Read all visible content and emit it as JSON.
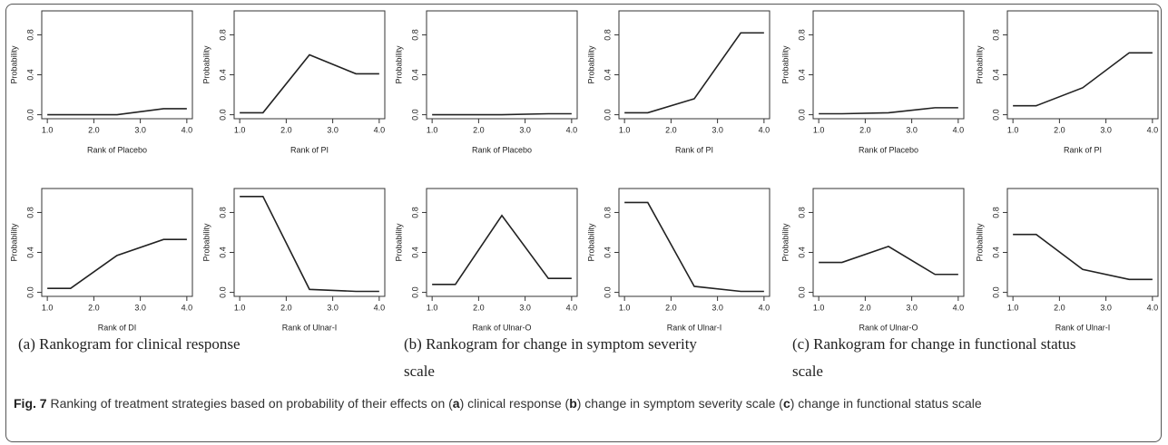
{
  "chart_data": [
    {
      "type": "line",
      "xlabel": "Rank of Placebo",
      "ylabel": "Probability",
      "x": [
        1,
        1.5,
        2.5,
        3.5,
        4
      ],
      "values": [
        0,
        0,
        0,
        0.06,
        0.06
      ],
      "color": "#222222",
      "xlim": [
        0.88,
        4.12
      ],
      "ylim": [
        -0.04,
        1.04
      ],
      "xticks": [
        {
          "value": 1,
          "label": "1.0"
        },
        {
          "value": 2,
          "label": "2.0"
        },
        {
          "value": 3,
          "label": "3.0"
        },
        {
          "value": 4,
          "label": "4.0"
        }
      ],
      "yticks": [
        {
          "value": 0,
          "label": "0.0"
        },
        {
          "value": 0.4,
          "label": "0.4"
        },
        {
          "value": 0.8,
          "label": "0.8"
        }
      ]
    },
    {
      "type": "line",
      "xlabel": "Rank of PI",
      "ylabel": "Probability",
      "x": [
        1,
        1.5,
        2.5,
        3.5,
        4
      ],
      "values": [
        0.02,
        0.02,
        0.6,
        0.41,
        0.41
      ],
      "color": "#222222",
      "xlim": [
        0.88,
        4.12
      ],
      "ylim": [
        -0.04,
        1.04
      ],
      "xticks": [
        {
          "value": 1,
          "label": "1.0"
        },
        {
          "value": 2,
          "label": "2.0"
        },
        {
          "value": 3,
          "label": "3.0"
        },
        {
          "value": 4,
          "label": "4.0"
        }
      ],
      "yticks": [
        {
          "value": 0,
          "label": "0.0"
        },
        {
          "value": 0.4,
          "label": "0.4"
        },
        {
          "value": 0.8,
          "label": "0.8"
        }
      ]
    },
    {
      "type": "line",
      "xlabel": "Rank of Placebo",
      "ylabel": "Probability",
      "x": [
        1,
        1.5,
        2.5,
        3.5,
        4
      ],
      "values": [
        0,
        0,
        0,
        0.01,
        0.01
      ],
      "color": "#222222",
      "xlim": [
        0.88,
        4.12
      ],
      "ylim": [
        -0.04,
        1.04
      ],
      "xticks": [
        {
          "value": 1,
          "label": "1.0"
        },
        {
          "value": 2,
          "label": "2.0"
        },
        {
          "value": 3,
          "label": "3.0"
        },
        {
          "value": 4,
          "label": "4.0"
        }
      ],
      "yticks": [
        {
          "value": 0,
          "label": "0.0"
        },
        {
          "value": 0.4,
          "label": "0.4"
        },
        {
          "value": 0.8,
          "label": "0.8"
        }
      ]
    },
    {
      "type": "line",
      "xlabel": "Rank of PI",
      "ylabel": "Probability",
      "x": [
        1,
        1.5,
        2.5,
        3.5,
        4
      ],
      "values": [
        0.02,
        0.02,
        0.16,
        0.82,
        0.82
      ],
      "color": "#222222",
      "xlim": [
        0.88,
        4.12
      ],
      "ylim": [
        -0.04,
        1.04
      ],
      "xticks": [
        {
          "value": 1,
          "label": "1.0"
        },
        {
          "value": 2,
          "label": "2.0"
        },
        {
          "value": 3,
          "label": "3.0"
        },
        {
          "value": 4,
          "label": "4.0"
        }
      ],
      "yticks": [
        {
          "value": 0,
          "label": "0.0"
        },
        {
          "value": 0.4,
          "label": "0.4"
        },
        {
          "value": 0.8,
          "label": "0.8"
        }
      ]
    },
    {
      "type": "line",
      "xlabel": "Rank of Placebo",
      "ylabel": "Probability",
      "x": [
        1,
        1.5,
        2.5,
        3.5,
        4
      ],
      "values": [
        0.01,
        0.01,
        0.02,
        0.07,
        0.07
      ],
      "color": "#222222",
      "xlim": [
        0.88,
        4.12
      ],
      "ylim": [
        -0.04,
        1.04
      ],
      "xticks": [
        {
          "value": 1,
          "label": "1.0"
        },
        {
          "value": 2,
          "label": "2.0"
        },
        {
          "value": 3,
          "label": "3.0"
        },
        {
          "value": 4,
          "label": "4.0"
        }
      ],
      "yticks": [
        {
          "value": 0,
          "label": "0.0"
        },
        {
          "value": 0.4,
          "label": "0.4"
        },
        {
          "value": 0.8,
          "label": "0.8"
        }
      ]
    },
    {
      "type": "line",
      "xlabel": "Rank of PI",
      "ylabel": "Probability",
      "x": [
        1,
        1.5,
        2.5,
        3.5,
        4
      ],
      "values": [
        0.09,
        0.09,
        0.27,
        0.62,
        0.62
      ],
      "color": "#222222",
      "xlim": [
        0.88,
        4.12
      ],
      "ylim": [
        -0.04,
        1.04
      ],
      "xticks": [
        {
          "value": 1,
          "label": "1.0"
        },
        {
          "value": 2,
          "label": "2.0"
        },
        {
          "value": 3,
          "label": "3.0"
        },
        {
          "value": 4,
          "label": "4.0"
        }
      ],
      "yticks": [
        {
          "value": 0,
          "label": "0.0"
        },
        {
          "value": 0.4,
          "label": "0.4"
        },
        {
          "value": 0.8,
          "label": "0.8"
        }
      ]
    },
    {
      "type": "line",
      "xlabel": "Rank of DI",
      "ylabel": "Probability",
      "x": [
        1,
        1.5,
        2.5,
        3.5,
        4
      ],
      "values": [
        0.04,
        0.04,
        0.37,
        0.53,
        0.53
      ],
      "color": "#222222",
      "xlim": [
        0.88,
        4.12
      ],
      "ylim": [
        -0.04,
        1.04
      ],
      "xticks": [
        {
          "value": 1,
          "label": "1.0"
        },
        {
          "value": 2,
          "label": "2.0"
        },
        {
          "value": 3,
          "label": "3.0"
        },
        {
          "value": 4,
          "label": "4.0"
        }
      ],
      "yticks": [
        {
          "value": 0,
          "label": "0.0"
        },
        {
          "value": 0.4,
          "label": "0.4"
        },
        {
          "value": 0.8,
          "label": "0.8"
        }
      ]
    },
    {
      "type": "line",
      "xlabel": "Rank of Ulnar-I",
      "ylabel": "Probability",
      "x": [
        1,
        1.5,
        2.5,
        3.5,
        4
      ],
      "values": [
        0.96,
        0.96,
        0.03,
        0.01,
        0.01
      ],
      "color": "#222222",
      "xlim": [
        0.88,
        4.12
      ],
      "ylim": [
        -0.04,
        1.04
      ],
      "xticks": [
        {
          "value": 1,
          "label": "1.0"
        },
        {
          "value": 2,
          "label": "2.0"
        },
        {
          "value": 3,
          "label": "3.0"
        },
        {
          "value": 4,
          "label": "4.0"
        }
      ],
      "yticks": [
        {
          "value": 0,
          "label": "0.0"
        },
        {
          "value": 0.4,
          "label": "0.4"
        },
        {
          "value": 0.8,
          "label": "0.8"
        }
      ]
    },
    {
      "type": "line",
      "xlabel": "Rank of Ulnar-O",
      "ylabel": "Probability",
      "x": [
        1,
        1.5,
        2.5,
        3.5,
        4
      ],
      "values": [
        0.08,
        0.08,
        0.77,
        0.14,
        0.14
      ],
      "color": "#222222",
      "xlim": [
        0.88,
        4.12
      ],
      "ylim": [
        -0.04,
        1.04
      ],
      "xticks": [
        {
          "value": 1,
          "label": "1.0"
        },
        {
          "value": 2,
          "label": "2.0"
        },
        {
          "value": 3,
          "label": "3.0"
        },
        {
          "value": 4,
          "label": "4.0"
        }
      ],
      "yticks": [
        {
          "value": 0,
          "label": "0.0"
        },
        {
          "value": 0.4,
          "label": "0.4"
        },
        {
          "value": 0.8,
          "label": "0.8"
        }
      ]
    },
    {
      "type": "line",
      "xlabel": "Rank of Ulnar-I",
      "ylabel": "Probability",
      "x": [
        1,
        1.5,
        2.5,
        3.5,
        4
      ],
      "values": [
        0.9,
        0.9,
        0.06,
        0.01,
        0.01
      ],
      "color": "#222222",
      "xlim": [
        0.88,
        4.12
      ],
      "ylim": [
        -0.04,
        1.04
      ],
      "xticks": [
        {
          "value": 1,
          "label": "1.0"
        },
        {
          "value": 2,
          "label": "2.0"
        },
        {
          "value": 3,
          "label": "3.0"
        },
        {
          "value": 4,
          "label": "4.0"
        }
      ],
      "yticks": [
        {
          "value": 0,
          "label": "0.0"
        },
        {
          "value": 0.4,
          "label": "0.4"
        },
        {
          "value": 0.8,
          "label": "0.8"
        }
      ]
    },
    {
      "type": "line",
      "xlabel": "Rank of Ulnar-O",
      "ylabel": "Probability",
      "x": [
        1,
        1.5,
        2.5,
        3.5,
        4
      ],
      "values": [
        0.3,
        0.3,
        0.46,
        0.18,
        0.18
      ],
      "color": "#222222",
      "xlim": [
        0.88,
        4.12
      ],
      "ylim": [
        -0.04,
        1.04
      ],
      "xticks": [
        {
          "value": 1,
          "label": "1.0"
        },
        {
          "value": 2,
          "label": "2.0"
        },
        {
          "value": 3,
          "label": "3.0"
        },
        {
          "value": 4,
          "label": "4.0"
        }
      ],
      "yticks": [
        {
          "value": 0,
          "label": "0.0"
        },
        {
          "value": 0.4,
          "label": "0.4"
        },
        {
          "value": 0.8,
          "label": "0.8"
        }
      ]
    },
    {
      "type": "line",
      "xlabel": "Rank of Ulnar-I",
      "ylabel": "Probability",
      "x": [
        1,
        1.5,
        2.5,
        3.5,
        4
      ],
      "values": [
        0.58,
        0.58,
        0.23,
        0.13,
        0.13
      ],
      "color": "#222222",
      "xlim": [
        0.88,
        4.12
      ],
      "ylim": [
        -0.04,
        1.04
      ],
      "xticks": [
        {
          "value": 1,
          "label": "1.0"
        },
        {
          "value": 2,
          "label": "2.0"
        },
        {
          "value": 3,
          "label": "3.0"
        },
        {
          "value": 4,
          "label": "4.0"
        }
      ],
      "yticks": [
        {
          "value": 0,
          "label": "0.0"
        },
        {
          "value": 0.4,
          "label": "0.4"
        },
        {
          "value": 0.8,
          "label": "0.8"
        }
      ]
    }
  ],
  "subcaptions": [
    "(a)  Rankogram for clinical response",
    "(b)  Rankogram for change in symptom severity scale",
    "(c)  Rankogram for change in functional status scale"
  ],
  "figure_label": "Fig. 7",
  "caption": [
    "Ranking of treatment strategies based on probability of their effects on (",
    "a",
    ") clinical response (",
    "b",
    ") change in symptom severity scale (",
    "c",
    ") change in functional status scale"
  ]
}
